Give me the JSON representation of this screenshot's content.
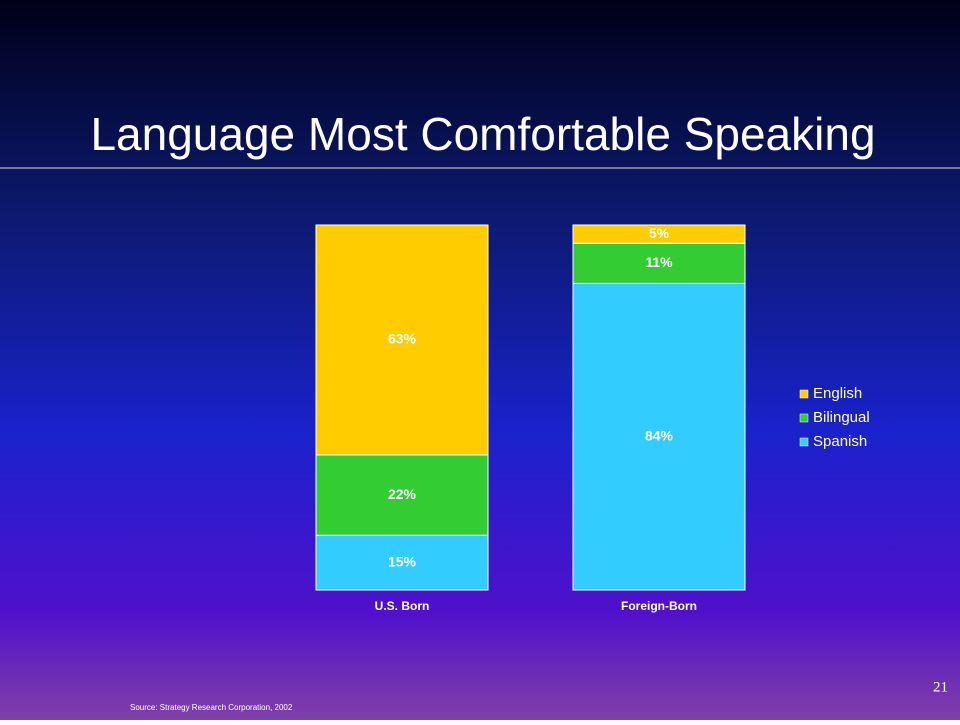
{
  "chart_data": {
    "type": "stacked_bar",
    "title": "Language Most Comfortable Speaking",
    "categories": [
      "U.S. Born",
      "Foreign-Born"
    ],
    "series": [
      {
        "name": "English",
        "color": "#ffcc00",
        "values": [
          63,
          5
        ],
        "value_labels": [
          "63%",
          "5%"
        ]
      },
      {
        "name": "Bilingual",
        "color": "#33cc33",
        "values": [
          22,
          11
        ],
        "value_labels": [
          "22%",
          "11%"
        ]
      },
      {
        "name": "Spanish",
        "color": "#33ccff",
        "values": [
          15,
          84
        ],
        "value_labels": [
          "15%",
          "84%"
        ]
      }
    ],
    "legend": "right",
    "source": "Source:  Strategy Research Corporation, 2002",
    "page_number": "21"
  }
}
